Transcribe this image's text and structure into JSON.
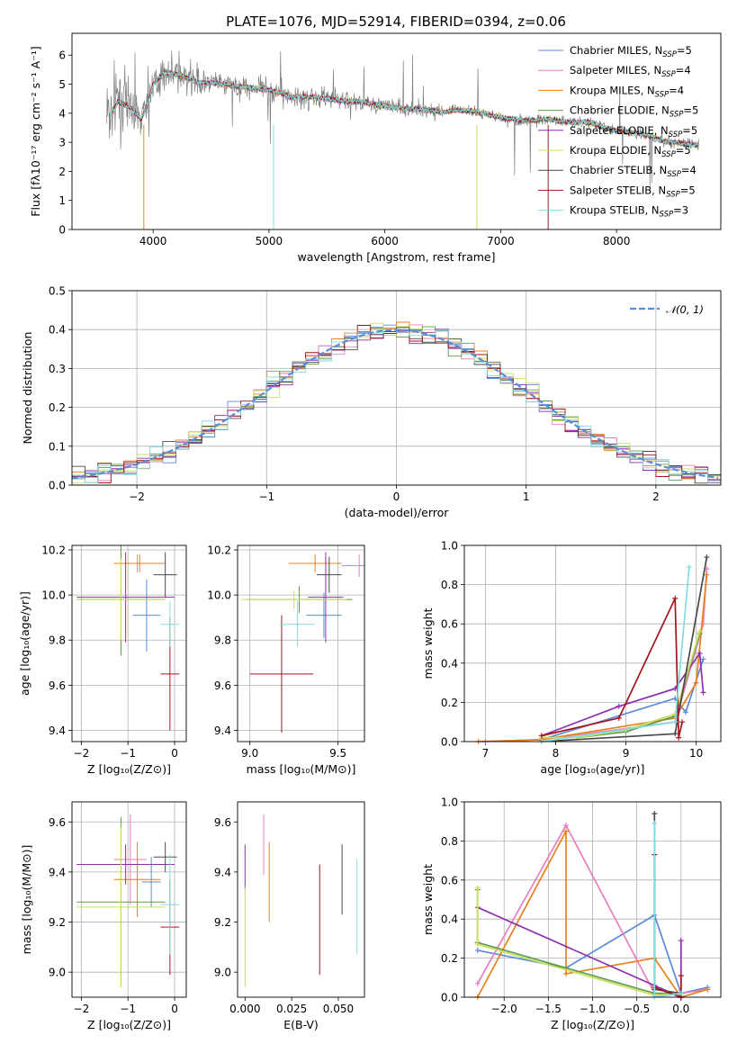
{
  "figure_title": "PLATE=1076, MJD=52914, FIBERID=0394, z=0.06",
  "colors": {
    "chabrier_miles": "#5b8bd9",
    "salpeter_miles": "#e87fbf",
    "kroupa_miles": "#e8801e",
    "chabrier_elodie": "#5e9e4a",
    "salpeter_elodie": "#8e2fae",
    "kroupa_elodie": "#c8df5a",
    "chabrier_stelib": "#4a4a4a",
    "salpeter_stelib": "#a3151d",
    "kroupa_stelib": "#84dbe0",
    "data": "#808080"
  },
  "chart_data": [
    {
      "id": "spectrum",
      "type": "line",
      "xlabel": "wavelength [Angstrom, rest frame]",
      "ylabel": "Flux [fλ10⁻¹⁷ erg cm⁻² s⁻¹ A⁻¹]",
      "xlim": [
        3300,
        8900
      ],
      "ylim": [
        0,
        6.75
      ],
      "xticks": [
        4000,
        5000,
        6000,
        7000,
        8000
      ],
      "yticks": [
        0,
        1,
        2,
        3,
        4,
        5,
        6
      ],
      "legend_position": "top-right",
      "continuum": {
        "x": [
          3620,
          3700,
          3800,
          3900,
          3950,
          4000,
          4100,
          4200,
          4300,
          4400,
          4500,
          4600,
          4700,
          4800,
          4900,
          5000,
          5100,
          5200,
          5300,
          5400,
          5500,
          5600,
          5700,
          5800,
          5900,
          6000,
          6100,
          6200,
          6300,
          6400,
          6500,
          6600,
          6700,
          6800,
          6900,
          7000,
          7100,
          7200,
          7300,
          7400,
          7500,
          7600,
          7700,
          7800,
          7900,
          8000,
          8100,
          8200,
          8300,
          8400,
          8500,
          8600,
          8700
        ],
        "y": [
          3.9,
          4.4,
          4.2,
          3.8,
          4.3,
          5.0,
          5.4,
          5.35,
          5.2,
          5.05,
          5.05,
          5.0,
          4.95,
          4.9,
          4.85,
          4.8,
          4.7,
          4.55,
          4.55,
          4.55,
          4.5,
          4.45,
          4.4,
          4.4,
          4.3,
          4.25,
          4.2,
          4.15,
          4.15,
          4.1,
          4.05,
          4.1,
          4.1,
          4.05,
          3.95,
          3.85,
          3.8,
          3.75,
          3.75,
          3.8,
          3.75,
          3.7,
          3.7,
          3.65,
          3.5,
          3.4,
          3.35,
          3.3,
          3.2,
          3.05,
          3.0,
          2.95,
          2.9
        ]
      },
      "series": [
        {
          "name": "Chabrier MILES, N_SSP=5",
          "label_prefix": "Chabrier MILES, N",
          "label_sub": "SSP",
          "label_suffix": "=5",
          "color_key": "chabrier_miles"
        },
        {
          "name": "Salpeter MILES, N_SSP=4",
          "label_prefix": "Salpeter MILES, N",
          "label_sub": "SSP",
          "label_suffix": "=4",
          "color_key": "salpeter_miles"
        },
        {
          "name": "Kroupa MILES, N_SSP=4",
          "label_prefix": "Kroupa MILES, N",
          "label_sub": "SSP",
          "label_suffix": "=4",
          "color_key": "kroupa_miles"
        },
        {
          "name": "Chabrier ELODIE, N_SSP=5",
          "label_prefix": "Chabrier ELODIE, N",
          "label_sub": "SSP",
          "label_suffix": "=5",
          "color_key": "chabrier_elodie"
        },
        {
          "name": "Salpeter ELODIE, N_SSP=5",
          "label_prefix": "Salpeter ELODIE, N",
          "label_sub": "SSP",
          "label_suffix": "=5",
          "color_key": "salpeter_elodie"
        },
        {
          "name": "Kroupa ELODIE, N_SSP=5",
          "label_prefix": "Kroupa ELODIE, N",
          "label_sub": "SSP",
          "label_suffix": "=5",
          "color_key": "kroupa_elodie"
        },
        {
          "name": "Chabrier STELIB, N_SSP=4",
          "label_prefix": "Chabrier STELIB, N",
          "label_sub": "SSP",
          "label_suffix": "=4",
          "color_key": "chabrier_stelib"
        },
        {
          "name": "Salpeter STELIB, N_SSP=5",
          "label_prefix": "Salpeter STELIB, N",
          "label_sub": "SSP",
          "label_suffix": "=5",
          "color_key": "salpeter_stelib"
        },
        {
          "name": "Kroupa STELIB, N_SSP=3",
          "label_prefix": "Kroupa STELIB, N",
          "label_sub": "SSP",
          "label_suffix": "=3",
          "color_key": "kroupa_stelib"
        }
      ]
    },
    {
      "id": "residuals",
      "type": "histogram",
      "xlabel": "(data-model)/error",
      "ylabel": "Normed distribution",
      "xlim": [
        -2.5,
        2.5
      ],
      "ylim": [
        0,
        0.5
      ],
      "xticks": [
        -2,
        -1,
        0,
        1,
        2
      ],
      "yticks": [
        0.0,
        0.1,
        0.2,
        0.3,
        0.4,
        0.5
      ],
      "grid": true,
      "legend_position": "top-right",
      "reference_label": "𝒩(0, 1)",
      "reference_color": "#5b8bd9",
      "bin_width": 0.1
    },
    {
      "id": "age_vs_Z",
      "type": "errorbar",
      "xlabel": "Z [log₁₀(Z/Z⊙)]",
      "ylabel": "age  [log₁₀(age/yr)]",
      "xlim": [
        -2.2,
        0.25
      ],
      "ylim": [
        9.35,
        10.22
      ],
      "xticks": [
        -2,
        -1,
        0
      ],
      "yticks": [
        9.4,
        9.6,
        9.8,
        10.0,
        10.2
      ],
      "grid": true,
      "points": [
        {
          "color_key": "chabrier_miles",
          "x": -0.6,
          "y": 9.91,
          "xerr": 0.3,
          "yerr": 0.16
        },
        {
          "color_key": "salpeter_miles",
          "x": -0.8,
          "y": 10.14,
          "xerr": 0.5,
          "yerr": 0.04
        },
        {
          "color_key": "kroupa_miles",
          "x": -0.75,
          "y": 10.14,
          "xerr": 0.55,
          "yerr": 0.04
        },
        {
          "color_key": "chabrier_elodie",
          "x": -1.15,
          "y": 9.98,
          "xerr": 0.95,
          "yerr": 0.25
        },
        {
          "color_key": "salpeter_elodie",
          "x": -1.05,
          "y": 9.99,
          "xerr": 1.05,
          "yerr": 0.2
        },
        {
          "color_key": "kroupa_elodie",
          "x": -1.15,
          "y": 9.98,
          "xerr": 0.95,
          "yerr": 0.18
        },
        {
          "color_key": "chabrier_stelib",
          "x": -0.2,
          "y": 10.09,
          "xerr": 0.25,
          "yerr": 0.1
        },
        {
          "color_key": "salpeter_stelib",
          "x": -0.1,
          "y": 9.65,
          "xerr": 0.2,
          "yerr": 0.25
        },
        {
          "color_key": "kroupa_stelib",
          "x": -0.1,
          "y": 9.87,
          "xerr": 0.2,
          "yerr": 0.1
        }
      ]
    },
    {
      "id": "age_vs_mass",
      "type": "errorbar",
      "xlabel": "mass [log₁₀(M/M⊙)]",
      "ylabel": "",
      "xlim": [
        8.93,
        9.65
      ],
      "ylim": [
        9.35,
        10.22
      ],
      "xticks": [
        9.0,
        9.5
      ],
      "yticks": [
        9.4,
        9.6,
        9.8,
        10.0,
        10.2
      ],
      "grid": true,
      "points": [
        {
          "color_key": "chabrier_miles",
          "x": 9.42,
          "y": 9.91,
          "xerr": 0.1,
          "yerr": 0.1
        },
        {
          "color_key": "salpeter_miles",
          "x": 9.62,
          "y": 10.13,
          "xerr": 0.1,
          "yerr": 0.05
        },
        {
          "color_key": "kroupa_miles",
          "x": 9.37,
          "y": 10.14,
          "xerr": 0.15,
          "yerr": 0.04
        },
        {
          "color_key": "chabrier_elodie",
          "x": 9.28,
          "y": 9.98,
          "xerr": 0.3,
          "yerr": 0.06
        },
        {
          "color_key": "salpeter_elodie",
          "x": 9.43,
          "y": 9.99,
          "xerr": 0.1,
          "yerr": 0.2
        },
        {
          "color_key": "kroupa_elodie",
          "x": 9.25,
          "y": 9.98,
          "xerr": 0.3,
          "yerr": 0.04
        },
        {
          "color_key": "chabrier_stelib",
          "x": 9.45,
          "y": 10.09,
          "xerr": 0.07,
          "yerr": 0.08
        },
        {
          "color_key": "salpeter_stelib",
          "x": 9.18,
          "y": 9.65,
          "xerr": 0.18,
          "yerr": 0.26
        },
        {
          "color_key": "kroupa_stelib",
          "x": 9.27,
          "y": 9.87,
          "xerr": 0.1,
          "yerr": 0.1
        }
      ]
    },
    {
      "id": "weight_vs_age",
      "type": "line",
      "xlabel": "age  [log₁₀(age/yr)]",
      "ylabel": "mass weight",
      "xlim": [
        6.7,
        10.35
      ],
      "ylim": [
        0,
        1.0
      ],
      "xticks": [
        7,
        8,
        9,
        10
      ],
      "yticks": [
        0.0,
        0.2,
        0.4,
        0.6,
        0.8,
        1.0
      ],
      "grid": true,
      "series": [
        {
          "color_key": "chabrier_miles",
          "x": [
            7.0,
            7.8,
            9.7,
            9.85,
            10.1
          ],
          "y": [
            0.0,
            0.01,
            0.22,
            0.15,
            0.42
          ]
        },
        {
          "color_key": "salpeter_miles",
          "x": [
            7.0,
            7.8,
            9.7,
            10.1,
            10.15
          ],
          "y": [
            0.0,
            0.01,
            0.1,
            0.6,
            0.88
          ]
        },
        {
          "color_key": "kroupa_miles",
          "x": [
            6.9,
            7.8,
            9.7,
            10.0,
            10.15
          ],
          "y": [
            0.0,
            0.01,
            0.12,
            0.3,
            0.85
          ]
        },
        {
          "color_key": "chabrier_elodie",
          "x": [
            7.8,
            8.3,
            9.0,
            9.7,
            10.05
          ],
          "y": [
            0.02,
            0.02,
            0.05,
            0.13,
            0.55
          ]
        },
        {
          "color_key": "salpeter_elodie",
          "x": [
            7.8,
            8.9,
            9.7,
            10.05,
            10.1
          ],
          "y": [
            0.03,
            0.18,
            0.27,
            0.45,
            0.25
          ]
        },
        {
          "color_key": "kroupa_elodie",
          "x": [
            7.8,
            8.3,
            9.0,
            9.7,
            10.05
          ],
          "y": [
            0.02,
            0.02,
            0.06,
            0.14,
            0.56
          ]
        },
        {
          "color_key": "chabrier_stelib",
          "x": [
            7.8,
            9.7,
            10.15
          ],
          "y": [
            0.0,
            0.04,
            0.94
          ]
        },
        {
          "color_key": "salpeter_stelib",
          "x": [
            7.8,
            8.9,
            9.7,
            9.75,
            9.8
          ],
          "y": [
            0.03,
            0.12,
            0.73,
            0.02,
            0.1
          ]
        },
        {
          "color_key": "kroupa_stelib",
          "x": [
            7.8,
            9.7,
            9.9
          ],
          "y": [
            0.0,
            0.1,
            0.89
          ]
        }
      ]
    },
    {
      "id": "mass_vs_Z",
      "type": "errorbar",
      "xlabel": "Z [log₁₀(Z/Z⊙)]",
      "ylabel": "mass [log₁₀(M/M⊙)]",
      "xlim": [
        -2.2,
        0.25
      ],
      "ylim": [
        8.9,
        9.68
      ],
      "xticks": [
        -2,
        -1,
        0
      ],
      "yticks": [
        9.0,
        9.2,
        9.4,
        9.6
      ],
      "grid": true,
      "points": [
        {
          "color_key": "chabrier_miles",
          "x": -0.5,
          "y": 9.36,
          "xerr": 0.2,
          "yerr": 0.1
        },
        {
          "color_key": "salpeter_miles",
          "x": -0.95,
          "y": 9.45,
          "xerr": 0.35,
          "yerr": 0.18
        },
        {
          "color_key": "kroupa_miles",
          "x": -0.8,
          "y": 9.37,
          "xerr": 0.5,
          "yerr": 0.15
        },
        {
          "color_key": "chabrier_elodie",
          "x": -1.15,
          "y": 9.28,
          "xerr": 0.95,
          "yerr": 0.34
        },
        {
          "color_key": "salpeter_elodie",
          "x": -1.05,
          "y": 9.43,
          "xerr": 1.05,
          "yerr": 0.08
        },
        {
          "color_key": "kroupa_elodie",
          "x": -1.15,
          "y": 9.26,
          "xerr": 0.95,
          "yerr": 0.32
        },
        {
          "color_key": "chabrier_stelib",
          "x": -0.2,
          "y": 9.46,
          "xerr": 0.25,
          "yerr": 0.06
        },
        {
          "color_key": "salpeter_stelib",
          "x": -0.1,
          "y": 9.18,
          "xerr": 0.2,
          "yerr": 0.19
        },
        {
          "color_key": "kroupa_stelib",
          "x": -0.1,
          "y": 9.27,
          "xerr": 0.2,
          "yerr": 0.2
        }
      ]
    },
    {
      "id": "mass_vs_ebv",
      "type": "errorbar",
      "xlabel": "E(B-V)",
      "ylabel": "",
      "xlim": [
        -0.004,
        0.064
      ],
      "ylim": [
        8.9,
        9.68
      ],
      "xticks": [
        0.0,
        0.025,
        0.05
      ],
      "xtick_labels": [
        "0.000",
        "0.025",
        "0.050"
      ],
      "yticks": [
        9.0,
        9.2,
        9.4,
        9.6
      ],
      "grid": false,
      "points": [
        {
          "color_key": "salpeter_elodie",
          "x": 0.0,
          "y": 9.42,
          "xerr": 0,
          "yerr": 0.09
        },
        {
          "color_key": "kroupa_elodie",
          "x": 0.0,
          "y": 9.14,
          "xerr": 0,
          "yerr": 0.2
        },
        {
          "color_key": "salpeter_miles",
          "x": 0.01,
          "y": 9.51,
          "xerr": 0,
          "yerr": 0.12
        },
        {
          "color_key": "kroupa_miles",
          "x": 0.013,
          "y": 9.36,
          "xerr": 0,
          "yerr": 0.16
        },
        {
          "color_key": "salpeter_stelib",
          "x": 0.04,
          "y": 9.21,
          "xerr": 0,
          "yerr": 0.22
        },
        {
          "color_key": "chabrier_stelib",
          "x": 0.052,
          "y": 9.37,
          "xerr": 0,
          "yerr": 0.14
        },
        {
          "color_key": "kroupa_stelib",
          "x": 0.06,
          "y": 9.26,
          "xerr": 0,
          "yerr": 0.19
        }
      ]
    },
    {
      "id": "weight_vs_Z",
      "type": "line",
      "xlabel": "Z [log₁₀(Z/Z⊙)]",
      "ylabel": "mass weight",
      "xlim": [
        -2.45,
        0.45
      ],
      "ylim": [
        0,
        1.0
      ],
      "xticks": [
        -2.0,
        -1.5,
        -1.0,
        -0.5,
        0.0
      ],
      "xtick_labels": [
        "−2.0",
        "−1.5",
        "−1.0",
        "−0.5",
        "0.0"
      ],
      "yticks": [
        0.0,
        0.2,
        0.4,
        0.6,
        0.8,
        1.0
      ],
      "grid": true,
      "series": [
        {
          "color_key": "chabrier_miles",
          "x": [
            -2.3,
            -1.3,
            -0.3,
            0.0,
            0.3
          ],
          "y": [
            0.24,
            0.15,
            0.42,
            0.02,
            0.05
          ]
        },
        {
          "color_key": "salpeter_miles",
          "x": [
            -2.3,
            -1.3,
            -0.3,
            0.0,
            0.3
          ],
          "y": [
            0.07,
            0.88,
            0.02,
            0.02,
            0.04
          ]
        },
        {
          "color_key": "kroupa_miles",
          "x": [
            -2.3,
            -1.3,
            -1.3,
            -0.3,
            0.0,
            0.3
          ],
          "y": [
            0.0,
            0.85,
            0.12,
            0.2,
            0.0,
            0.04
          ]
        },
        {
          "color_key": "chabrier_elodie",
          "x": [
            -2.3,
            -2.3,
            -0.3,
            0.0
          ],
          "y": [
            0.55,
            0.28,
            0.02,
            0.02
          ]
        },
        {
          "color_key": "salpeter_elodie",
          "x": [
            -2.3,
            -0.3,
            0.0,
            0.0
          ],
          "y": [
            0.46,
            0.06,
            0.0,
            0.29
          ]
        },
        {
          "color_key": "kroupa_elodie",
          "x": [
            -2.3,
            -2.3,
            -0.3,
            0.0
          ],
          "y": [
            0.56,
            0.27,
            0.01,
            0.02
          ]
        },
        {
          "color_key": "chabrier_stelib",
          "x": [
            -0.3,
            -0.3,
            0.0
          ],
          "y": [
            0.94,
            0.04,
            0.02
          ]
        },
        {
          "color_key": "salpeter_stelib",
          "x": [
            -0.3,
            -0.3,
            0.0,
            0.0
          ],
          "y": [
            0.73,
            0.05,
            0.0,
            0.11
          ]
        },
        {
          "color_key": "kroupa_stelib",
          "x": [
            -0.3,
            -0.3,
            0.0
          ],
          "y": [
            0.89,
            0.0,
            0.02
          ]
        }
      ]
    }
  ]
}
